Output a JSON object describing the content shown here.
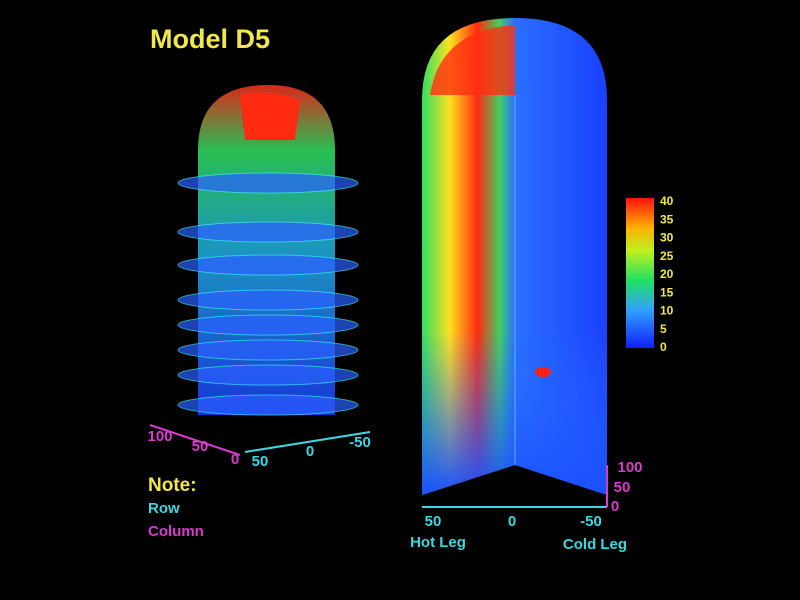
{
  "title": "Model D5",
  "colorbar": {
    "labels": [
      "40",
      "35",
      "30",
      "25",
      "20",
      "15",
      "10",
      "5",
      "0"
    ]
  },
  "left_model": {
    "row_axis": [
      "100",
      "50",
      "0"
    ],
    "column_axis": [
      "50",
      "0",
      "-50"
    ]
  },
  "note": {
    "heading": "Note:",
    "row": "Row",
    "column": "Column"
  },
  "right_model": {
    "vertical_axis": [
      "100",
      "50",
      "0"
    ],
    "horizontal_axis": [
      "50",
      "0",
      "-50"
    ],
    "hot_leg": "Hot Leg",
    "cold_leg": "Cold Leg"
  }
}
